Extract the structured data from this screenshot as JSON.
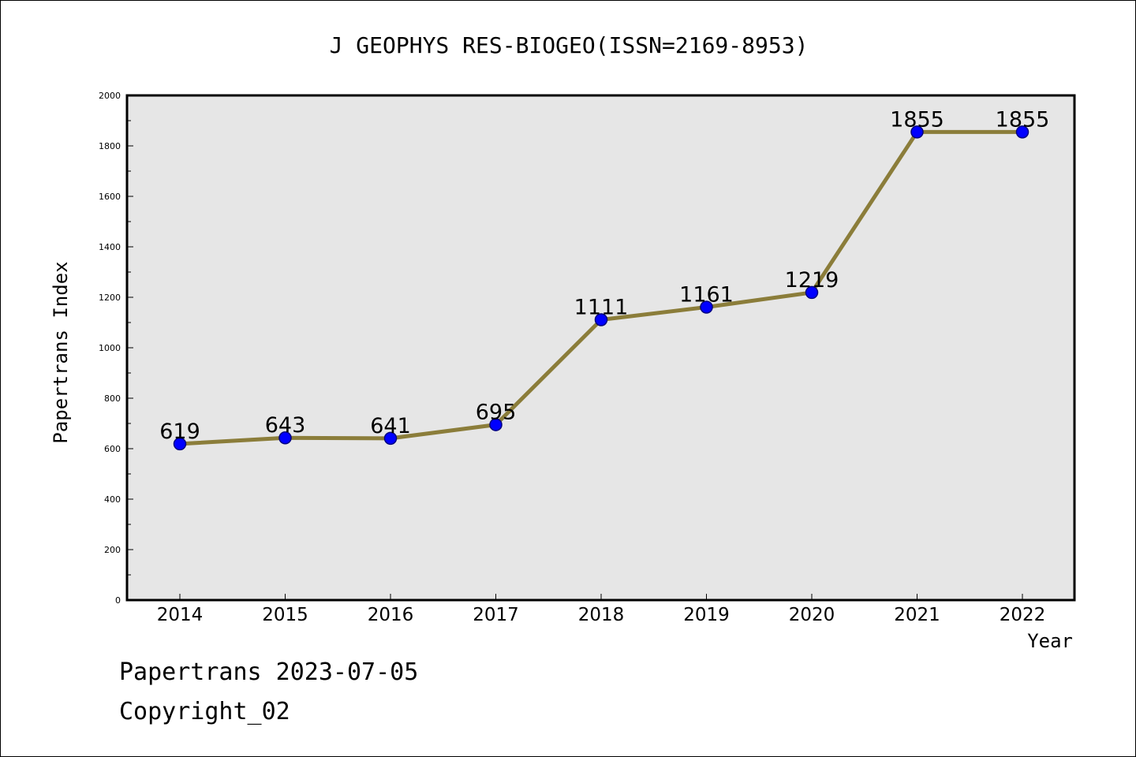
{
  "footer": {
    "date_text": "Papertrans 2023-07-05",
    "copyright_text": "Copyright_02"
  },
  "chart_data": {
    "type": "line",
    "title": "J GEOPHYS RES-BIOGEO(ISSN=2169-8953)",
    "xlabel": "Year",
    "ylabel": "Papertrans Index",
    "categories": [
      "2014",
      "2015",
      "2016",
      "2017",
      "2018",
      "2019",
      "2020",
      "2021",
      "2022"
    ],
    "series": [
      {
        "values": [
          619,
          643,
          641,
          695,
          1111,
          1161,
          1219,
          1855,
          1855
        ],
        "data_labels": [
          "619",
          "643",
          "641",
          "695",
          "1111",
          "1161",
          "1219",
          "1855",
          "1855"
        ]
      }
    ],
    "ylim": [
      0,
      2000
    ],
    "yticks": [
      0,
      200,
      400,
      600,
      800,
      1000,
      1200,
      1400,
      1600,
      1800,
      2000
    ],
    "grid": false,
    "legend": "none",
    "colors": {
      "plot_background": "#e6e6e6",
      "line": "#8b7d3a",
      "marker_fill": "#0000ff",
      "marker_edge": "#000080",
      "frame": "#000000"
    }
  }
}
